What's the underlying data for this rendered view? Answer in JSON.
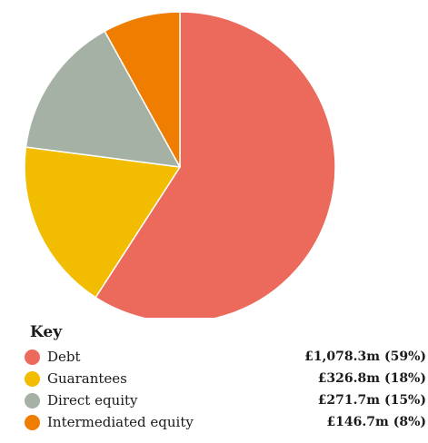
{
  "chart_data": {
    "type": "pie",
    "title": "",
    "legend_title": "Key",
    "legend_position": "bottom-left",
    "slices": [
      {
        "label": "Debt",
        "value": 1078.3,
        "display_value": "£1,078.3m (59%)",
        "color": "#ec6a5c"
      },
      {
        "label": "Guarantees",
        "value": 326.8,
        "display_value": "£326.8m (18%)",
        "color": "#f2bc00"
      },
      {
        "label": "Direct equity",
        "value": 271.7,
        "display_value": "£271.7m (15%)",
        "color": "#a4b1a4"
      },
      {
        "label": "Intermediated equity",
        "value": 146.7,
        "display_value": "£146.7m (8%)",
        "color": "#ee7d00"
      }
    ]
  }
}
